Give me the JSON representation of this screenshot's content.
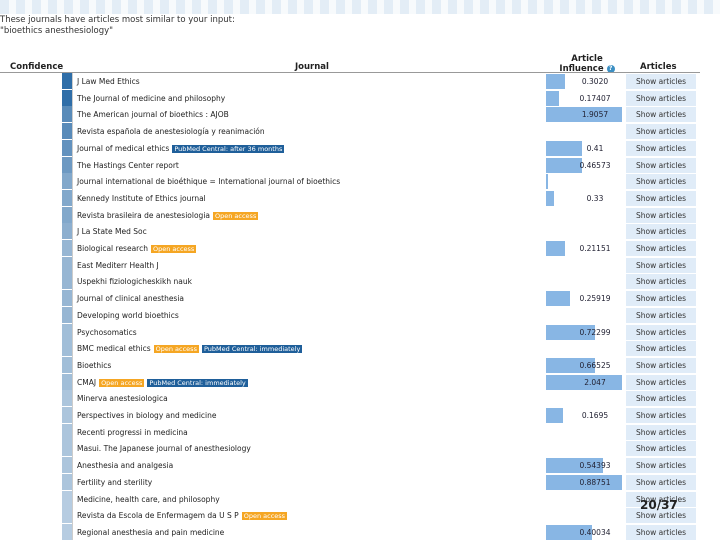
{
  "intro": {
    "line1": "These journals have articles most similar to your input:",
    "line2": "\"bioethics anesthesiology\""
  },
  "headers": {
    "confidence": "Confidence",
    "journal": "Journal",
    "ai_line1": "Article",
    "ai_line2": "Influence",
    "articles": "Articles",
    "info_icon": "?"
  },
  "page_number": "20/37",
  "colors": {
    "confidence_bar": "#2f6ea8",
    "ai_bar": "#88b6e4",
    "button": "#e0ecf8",
    "open_access": "#f5a623",
    "pmc": "#1f5f9a"
  },
  "icons": [
    "info-icon"
  ],
  "rows": [
    {
      "journal": "J Law Med Ethics",
      "conf": 1,
      "ai": "0.3020",
      "bar": 0.25,
      "btn": "Show articles",
      "badges": []
    },
    {
      "journal": "The Journal of medicine and philosophy",
      "conf": 1,
      "ai": "0.17407",
      "bar": 0.17,
      "btn": "Show articles",
      "badges": []
    },
    {
      "journal": "The American journal of bioethics : AJOB",
      "conf": 0.8,
      "ai": "1.9057",
      "bar": 1.0,
      "btn": "Show articles",
      "badges": []
    },
    {
      "journal": "Revista española de anestesiología y reanimación",
      "conf": 0.8,
      "ai": "",
      "bar": 0,
      "btn": "Show articles",
      "badges": []
    },
    {
      "journal": "Journal of medical ethics",
      "conf": 0.75,
      "ai": "0.41",
      "bar": 0.48,
      "btn": "Show articles",
      "badges": [
        {
          "text": "PubMed Central: after 36 months",
          "type": "pmc"
        }
      ]
    },
    {
      "journal": "The Hastings Center report",
      "conf": 0.7,
      "ai": "0.46573",
      "bar": 0.48,
      "btn": "Show articles",
      "badges": []
    },
    {
      "journal": "Journal international de bioéthique = International journal of bioethics",
      "conf": 0.6,
      "ai": "",
      "bar": 0.03,
      "btn": "Show articles",
      "badges": []
    },
    {
      "journal": "Kennedy Institute of Ethics journal",
      "conf": 0.6,
      "ai": "0.33",
      "bar": 0.1,
      "btn": "Show articles",
      "badges": []
    },
    {
      "journal": "Revista brasileira de anestesiologia",
      "conf": 0.6,
      "ai": "",
      "bar": 0,
      "btn": "Show articles",
      "badges": [
        {
          "text": "Open access",
          "type": "oa"
        }
      ]
    },
    {
      "journal": "J La State Med Soc",
      "conf": 0.55,
      "ai": "",
      "bar": 0,
      "btn": "Show articles",
      "badges": []
    },
    {
      "journal": "Biological research",
      "conf": 0.5,
      "ai": "0.21151",
      "bar": 0.25,
      "btn": "Show articles",
      "badges": [
        {
          "text": "Open access",
          "type": "oa"
        }
      ]
    },
    {
      "journal": "East Mediterr Health J",
      "conf": 0.5,
      "ai": "",
      "bar": 0,
      "btn": "Show articles",
      "badges": []
    },
    {
      "journal": "Uspekhi fiziologicheskikh nauk",
      "conf": 0.5,
      "ai": "",
      "bar": 0,
      "btn": "Show articles",
      "badges": []
    },
    {
      "journal": "Journal of clinical anesthesia",
      "conf": 0.5,
      "ai": "0.25919",
      "bar": 0.32,
      "btn": "Show articles",
      "badges": []
    },
    {
      "journal": "Developing world bioethics",
      "conf": 0.5,
      "ai": "",
      "bar": 0,
      "btn": "Show articles",
      "badges": []
    },
    {
      "journal": "Psychosomatics",
      "conf": 0.45,
      "ai": "0.72299",
      "bar": 0.65,
      "btn": "Show articles",
      "badges": []
    },
    {
      "journal": "BMC medical ethics",
      "conf": 0.45,
      "ai": "",
      "bar": 0,
      "btn": "Show articles",
      "badges": [
        {
          "text": "Open access",
          "type": "oa"
        },
        {
          "text": "PubMed Central: immediately",
          "type": "pmc"
        }
      ]
    },
    {
      "journal": "Bioethics",
      "conf": 0.45,
      "ai": "0.66525",
      "bar": 0.65,
      "btn": "Show articles",
      "badges": []
    },
    {
      "journal": "CMAJ",
      "conf": 0.45,
      "ai": "2.047",
      "bar": 1.0,
      "btn": "Show articles",
      "badges": [
        {
          "text": "Open access",
          "type": "oa"
        },
        {
          "text": "PubMed Central: immediately",
          "type": "pmc"
        }
      ]
    },
    {
      "journal": "Minerva anestesiologica",
      "conf": 0.4,
      "ai": "",
      "bar": 0,
      "btn": "Show articles",
      "badges": []
    },
    {
      "journal": "Perspectives in biology and medicine",
      "conf": 0.4,
      "ai": "0.1695",
      "bar": 0.22,
      "btn": "Show articles",
      "badges": []
    },
    {
      "journal": "Recenti progressi in medicina",
      "conf": 0.4,
      "ai": "",
      "bar": 0,
      "btn": "Show articles",
      "badges": []
    },
    {
      "journal": "Masui. The Japanese journal of anesthesiology",
      "conf": 0.4,
      "ai": "",
      "bar": 0,
      "btn": "Show articles",
      "badges": []
    },
    {
      "journal": "Anesthesia and analgesia",
      "conf": 0.4,
      "ai": "0.54393",
      "bar": 0.75,
      "btn": "Show articles",
      "badges": []
    },
    {
      "journal": "Fertility and sterility",
      "conf": 0.4,
      "ai": "0.88751",
      "bar": 1.0,
      "btn": "Show articles",
      "badges": []
    },
    {
      "journal": "Medicine, health care, and philosophy",
      "conf": 0.35,
      "ai": "",
      "bar": 0,
      "btn": "Show articles",
      "badges": []
    },
    {
      "journal": "Revista da Escola de Enfermagem da U S P",
      "conf": 0.35,
      "ai": "",
      "bar": 0,
      "btn": "Show articles",
      "badges": [
        {
          "text": "Open access",
          "type": "oa"
        }
      ]
    },
    {
      "journal": "Regional anesthesia and pain medicine",
      "conf": 0.35,
      "ai": "0.40034",
      "bar": 0.6,
      "btn": "Show articles",
      "badges": []
    }
  ]
}
